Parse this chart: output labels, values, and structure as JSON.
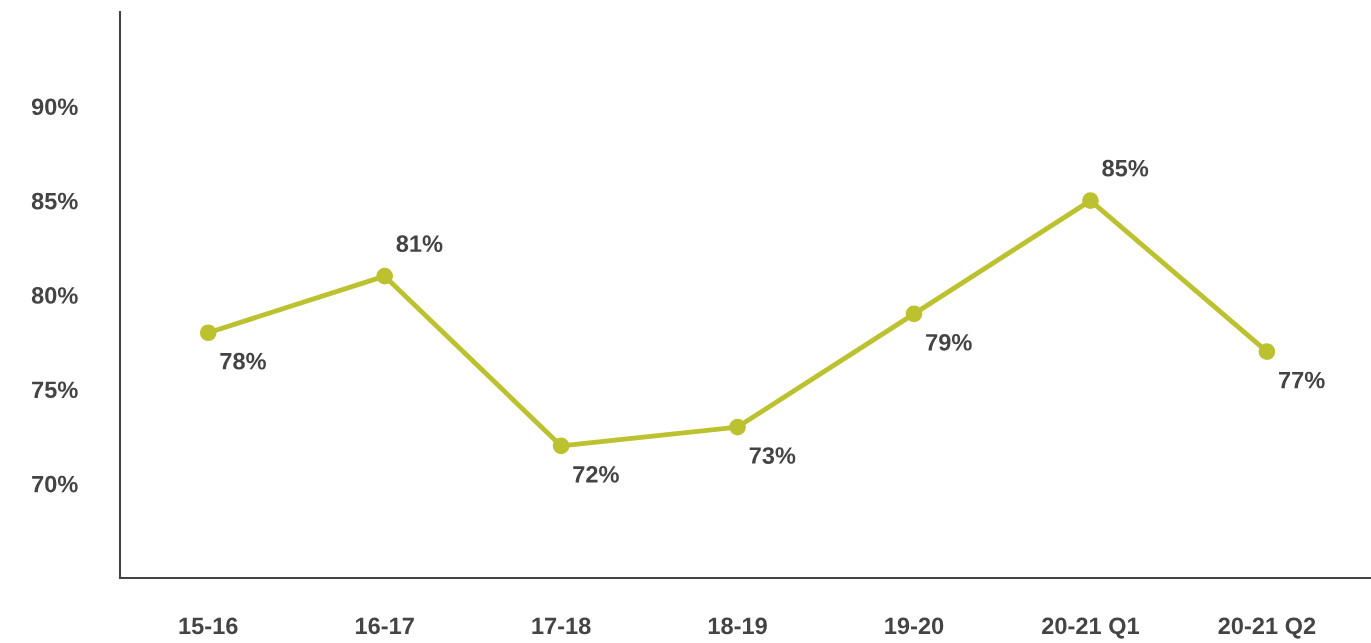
{
  "chart_data": {
    "type": "line",
    "categories": [
      "15-16",
      "16-17",
      "17-18",
      "18-19",
      "19-20",
      "20-21 Q1",
      "20-21 Q2"
    ],
    "series": [
      {
        "color": "#bcc22f",
        "values": [
          78,
          81,
          72,
          73,
          79,
          85,
          77
        ]
      }
    ],
    "ylim": [
      65,
      95
    ],
    "yticks": [
      {
        "value": 70,
        "label": "70%"
      },
      {
        "value": 75,
        "label": "75%"
      },
      {
        "value": 80,
        "label": "80%"
      },
      {
        "value": 85,
        "label": "85%"
      },
      {
        "value": 90,
        "label": "90%"
      }
    ],
    "value_labels": [
      "78%",
      "81%",
      "72%",
      "73%",
      "79%",
      "85%",
      "77%"
    ],
    "marker": "circle",
    "line_style": "solid",
    "grid": false,
    "legend": false
  }
}
